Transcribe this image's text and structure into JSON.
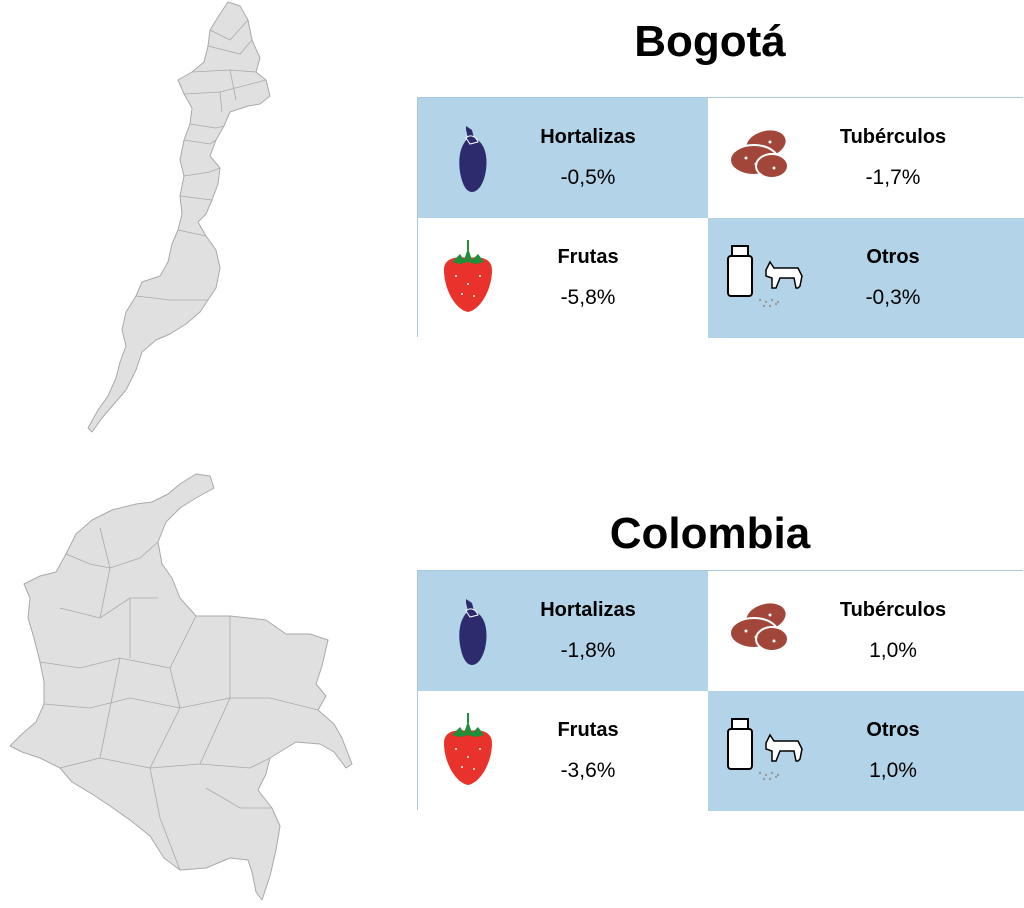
{
  "colors": {
    "highlight": "#b3d4e8",
    "map_fill": "#e0e0e0",
    "map_stroke": "#a9a9a9",
    "eggplant": "#2e2a6e",
    "potato": "#a3463a",
    "strawberry": "#e8322b",
    "leaf": "#1f8f3a"
  },
  "sections": [
    {
      "title": "Bogotá",
      "map": "bogota-map",
      "cells": [
        {
          "label": "Hortalizas",
          "value": "-0,5%",
          "icon": "eggplant-icon"
        },
        {
          "label": "Tubérculos",
          "value": "-1,7%",
          "icon": "potato-icon"
        },
        {
          "label": "Frutas",
          "value": "-5,8%",
          "icon": "strawberry-icon"
        },
        {
          "label": "Otros",
          "value": "-0,3%",
          "icon": "milk-cow-icon"
        }
      ]
    },
    {
      "title": "Colombia",
      "map": "colombia-map",
      "cells": [
        {
          "label": "Hortalizas",
          "value": "-1,8%",
          "icon": "eggplant-icon"
        },
        {
          "label": "Tubérculos",
          "value": "1,0%",
          "icon": "potato-icon"
        },
        {
          "label": "Frutas",
          "value": "-3,6%",
          "icon": "strawberry-icon"
        },
        {
          "label": "Otros",
          "value": "1,0%",
          "icon": "milk-cow-icon"
        }
      ]
    }
  ]
}
